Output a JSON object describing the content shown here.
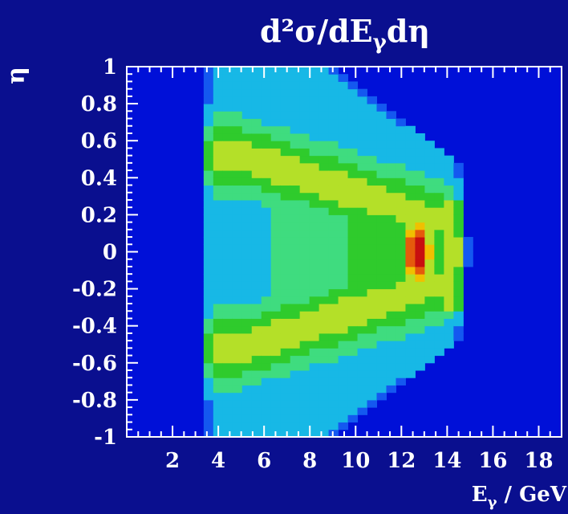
{
  "chart_data": {
    "type": "heatmap",
    "title": "d²σ/dE",
    "title_subscript": "γ",
    "title_suffix": "dη",
    "xlabel": "E",
    "xlabel_subscript": "γ",
    "xlabel_suffix": " / GeV",
    "ylabel": "η",
    "xlim": [
      0,
      19
    ],
    "ylim": [
      -1,
      1
    ],
    "x_ticks": [
      2,
      4,
      6,
      8,
      10,
      12,
      14,
      16,
      18
    ],
    "x_tick_labels": [
      "2",
      "4",
      "6",
      "8",
      "10",
      "12",
      "14",
      "16",
      "18"
    ],
    "y_ticks": [
      1,
      0.8,
      0.6,
      0.4,
      0.2,
      0,
      -0.2,
      -0.4,
      -0.6,
      -0.8,
      -1
    ],
    "y_tick_labels": [
      "1",
      "0.8",
      "0.6",
      "0.4",
      "0.2",
      "0",
      "-0.2",
      "-0.4",
      "-0.6",
      "-0.8",
      "-1"
    ],
    "grid": false,
    "legend": false,
    "colors": {
      "background": "#0a0f8f",
      "frame": "#ffffff",
      "zero": "#0010d8",
      "scale": [
        "#0010d8",
        "#1458f0",
        "#17b8e6",
        "#3fdc7f",
        "#2fcb2c",
        "#b4e028",
        "#f0c000",
        "#e55a0c",
        "#c80f0f",
        "#000000"
      ]
    },
    "levels": [
      0,
      0.05,
      0.15,
      0.26,
      0.38,
      0.52,
      0.66,
      0.78,
      0.88,
      0.96
    ]
  }
}
